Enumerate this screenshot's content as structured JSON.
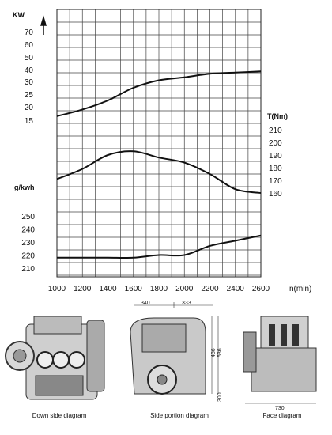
{
  "chart_data": [
    {
      "type": "line",
      "x": [
        1000,
        1200,
        1400,
        1600,
        1800,
        2000,
        2200,
        2400,
        2600
      ],
      "xlabel": "n(min)",
      "xlim": [
        1000,
        2600
      ],
      "series": [
        {
          "name": "KW",
          "values": [
            16.5,
            19,
            22.5,
            27.5,
            31,
            33.5,
            36.5,
            37.5,
            38.5
          ]
        },
        {
          "name": "T(Nm)",
          "values": [
            171,
            179,
            190,
            193,
            188,
            184,
            175,
            163,
            160
          ]
        },
        {
          "name": "g/kwh",
          "values": [
            218,
            218,
            218,
            218,
            220,
            220,
            227,
            231,
            235
          ]
        }
      ],
      "axes": {
        "kw": {
          "label": "KW",
          "ticks": [
            70,
            60,
            50,
            40,
            30,
            25,
            20,
            15
          ]
        },
        "torque": {
          "label": "T(Nm)",
          "ticks": [
            210,
            200,
            190,
            180,
            170,
            160
          ]
        },
        "consumption": {
          "label": "g/kwh",
          "ticks": [
            250,
            240,
            230,
            220,
            210
          ]
        }
      },
      "grid": true
    }
  ],
  "diagrams": {
    "captions": [
      "Down side diagram",
      "Side portion diagram",
      "Face diagram"
    ],
    "dims": {
      "top_left": "340",
      "top_right": "333",
      "right_upper": "486",
      "right_mid": "536",
      "right_lower": "300",
      "face_bottom": "730"
    }
  }
}
